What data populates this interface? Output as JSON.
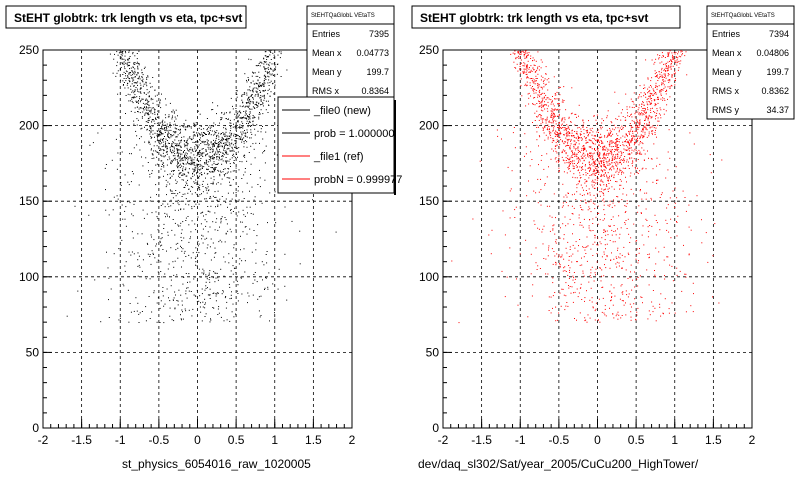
{
  "chart_data": [
    {
      "type": "scatter",
      "title": "StEHT globtrk: trk length vs eta, tpc+svt",
      "xlabel": "st_physics_6054016_raw_1020005",
      "xlim": [
        -2,
        2
      ],
      "ylim": [
        0,
        250
      ],
      "x_ticks": [
        "-2",
        "-1.5",
        "-1",
        "-0.5",
        "0",
        "0.5",
        "1",
        "1.5",
        "2"
      ],
      "y_ticks": [
        "0",
        "50",
        "100",
        "150",
        "200",
        "250"
      ],
      "grid": true,
      "marker_color": "#000000",
      "series": [
        {
          "name": "_file0 (new)",
          "color": "#000000"
        }
      ],
      "stats": {
        "title": "StEHTQaGlobL VEtaTS",
        "rows": [
          {
            "label": "Entries",
            "value": "7395"
          },
          {
            "label": "Mean x",
            "value": "0.04773"
          },
          {
            "label": "Mean y",
            "value": "199.7"
          },
          {
            "label": "RMS x",
            "value": "0.8364"
          }
        ]
      },
      "legend": {
        "placement": "top-right",
        "entries": [
          {
            "label": "_file0 (new)",
            "color": "#000000"
          },
          {
            "label": "prob = 1.000000",
            "color": "#000000"
          },
          {
            "label": "_file1 (ref)",
            "color": "#ff0000"
          },
          {
            "label": "probN = 0.999977",
            "color": "#ff0000"
          }
        ]
      }
    },
    {
      "type": "scatter",
      "title": "StEHT globtrk: trk length vs eta, tpc+svt",
      "xlabel": "dev/daq_sl302/Sat/year_2005/CuCu200_HighTower/",
      "xlim": [
        -2,
        2
      ],
      "ylim": [
        0,
        250
      ],
      "x_ticks": [
        "-2",
        "-1.5",
        "-1",
        "-0.5",
        "0",
        "0.5",
        "1",
        "1.5",
        "2"
      ],
      "y_ticks": [
        "0",
        "50",
        "100",
        "150",
        "200",
        "250"
      ],
      "grid": true,
      "marker_color": "#ff0000",
      "series": [
        {
          "name": "_file1 (ref)",
          "color": "#ff0000"
        }
      ],
      "stats": {
        "title": "StEHTQaGlobL VEtaTS",
        "rows": [
          {
            "label": "Entries",
            "value": "7394"
          },
          {
            "label": "Mean x",
            "value": "0.04806"
          },
          {
            "label": "Mean y",
            "value": "199.7"
          },
          {
            "label": "RMS x",
            "value": "0.8362"
          },
          {
            "label": "RMS y",
            "value": "34.37"
          }
        ]
      }
    }
  ]
}
